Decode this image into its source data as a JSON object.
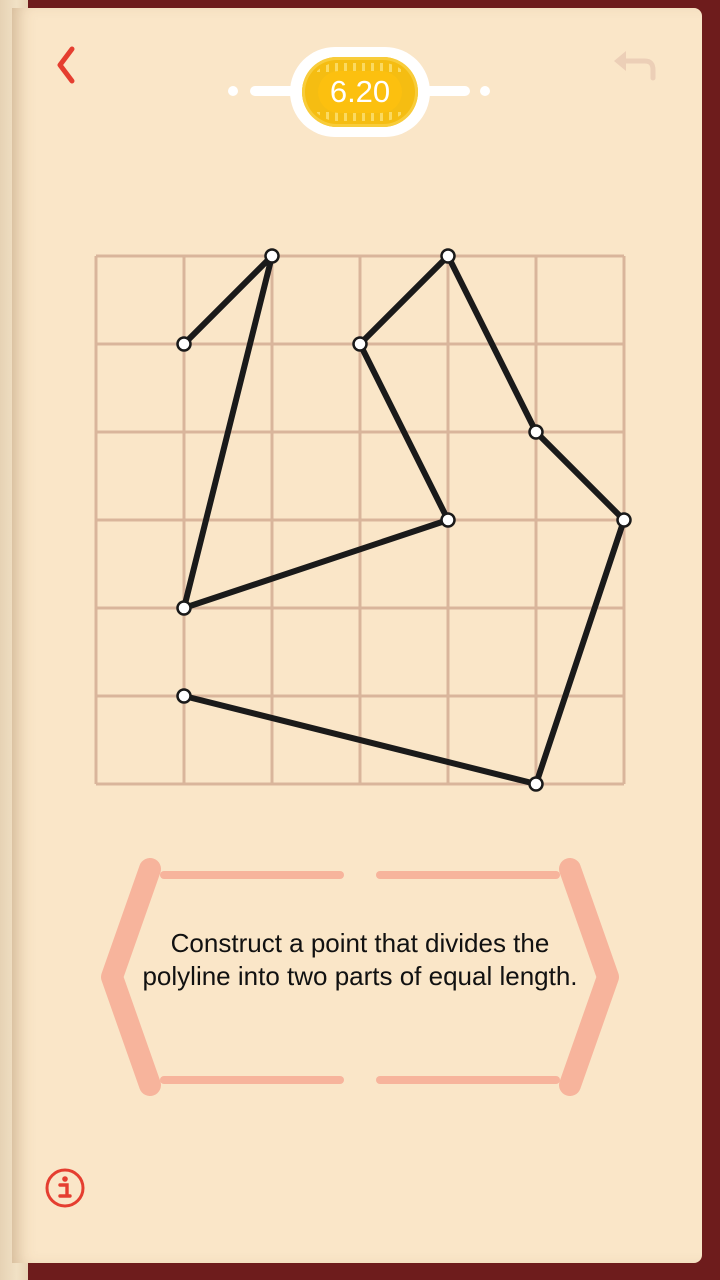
{
  "header": {
    "back_icon": "chevron-left-icon",
    "undo_icon": "undo-icon",
    "level": "6.20",
    "accent_color": "#e53e30",
    "badge_color": "#f5bd12"
  },
  "puzzle": {
    "grid": {
      "cols": 6,
      "rows": 6
    },
    "polyline": [
      [
        1,
        1
      ],
      [
        2,
        0
      ],
      [
        1,
        4
      ],
      [
        4,
        3
      ],
      [
        3,
        1
      ],
      [
        4,
        0
      ],
      [
        5,
        2
      ],
      [
        6,
        3
      ],
      [
        5,
        6
      ],
      [
        1,
        5
      ]
    ],
    "line_color": "#1a1a1a",
    "grid_color": "#d9b59b"
  },
  "task": {
    "text": "Construct a point that divides the polyline into two parts of equal length.",
    "frame_color": "#f7b49c"
  },
  "footer": {
    "info_icon": "info-icon"
  }
}
